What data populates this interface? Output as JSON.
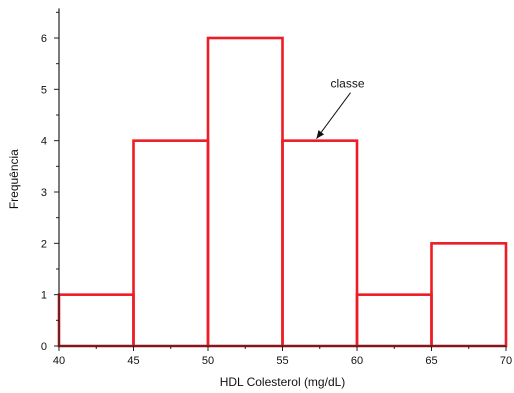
{
  "chart_data": {
    "type": "bar",
    "title": "",
    "xlabel": "HDL Colesterol (mg/dL)",
    "ylabel": "Frequência",
    "bins": [
      {
        "from": 40,
        "to": 45,
        "value": 1
      },
      {
        "from": 45,
        "to": 50,
        "value": 4
      },
      {
        "from": 50,
        "to": 55,
        "value": 6
      },
      {
        "from": 55,
        "to": 60,
        "value": 4
      },
      {
        "from": 60,
        "to": 65,
        "value": 1
      },
      {
        "from": 65,
        "to": 70,
        "value": 2
      }
    ],
    "xlim": [
      40,
      70
    ],
    "ylim": [
      0,
      6.5
    ],
    "xticks": [
      "40",
      "45",
      "50",
      "55",
      "60",
      "65",
      "70"
    ],
    "yticks": [
      "0",
      "1",
      "2",
      "3",
      "4",
      "5",
      "6"
    ],
    "grid": false,
    "bar_color": "#ee1c24",
    "annotation": {
      "text": "classe",
      "points_to_bin": 3
    }
  }
}
